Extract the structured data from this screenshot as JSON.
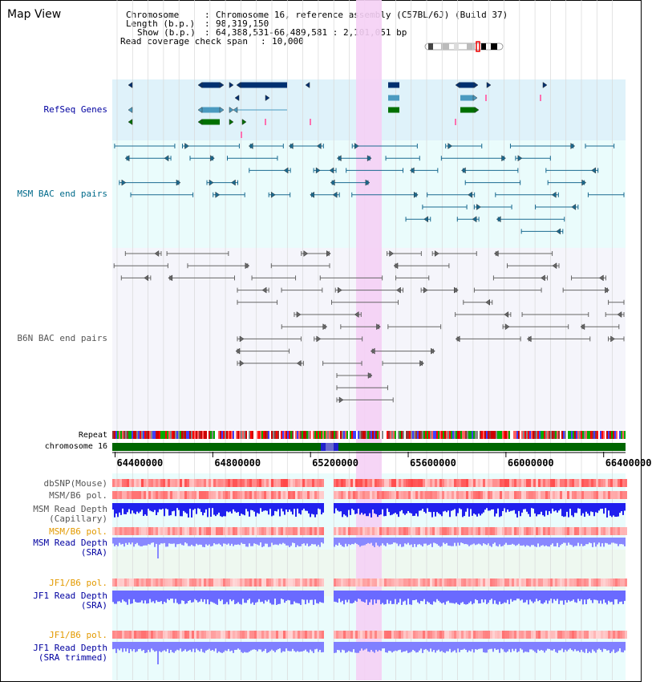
{
  "header": {
    "title": "Map View",
    "chromosome_key": "Chromosome",
    "chromosome_value": "Chromosome 16, reference assembly (C57BL/6J) (Build 37)",
    "length_key": "Length (b.p.)",
    "length_value": "98,319,150",
    "show_key": "Show (b.p.)",
    "show_value": "64,388,531-66,489,581 : 2,101,051 bp",
    "coverage_key": "Read coverage check span",
    "coverage_value": "10,000"
  },
  "axis": {
    "ticks": [
      "64400000",
      "64800000",
      "65200000",
      "65600000",
      "66000000",
      "66400000"
    ],
    "tick_positions_bp": [
      64400000,
      64800000,
      65200000,
      65600000,
      66000000,
      66400000
    ],
    "range_bp": [
      64388531,
      66489581
    ]
  },
  "tracks": {
    "refseq": "RefSeq Genes",
    "msm_bac": "MSM BAC end pairs",
    "b6n_bac": "B6N BAC end pairs",
    "repeat": "Repeat",
    "chromosome": "chromosome 16",
    "dbsnp": "dbSNP(Mouse)",
    "msm_b6_pol_1": "MSM/B6 pol.",
    "msm_depth_cap_1": "MSM Read Depth",
    "msm_depth_cap_2": "(Capillary)",
    "msm_b6_pol_2": "MSM/B6 pol.",
    "msm_depth_sra_1": "MSM Read Depth",
    "msm_depth_sra_2": "(SRA)",
    "jf1_b6_pol_1": "JF1/B6 pol.",
    "jf1_depth_sra_1": "JF1 Read Depth",
    "jf1_depth_sra_2": "(SRA)",
    "jf1_b6_pol_2": "JF1/B6 pol.",
    "jf1_depth_trim_1": "JF1 Read Depth",
    "jf1_depth_trim_2": "(SRA trimmed)"
  },
  "colors": {
    "refseq_bg": "#dff2fa",
    "msm_bg": "#eafcfc",
    "b6n_bg": "#f5f5fb",
    "highlight": "#f5d0f5",
    "gene_navy": "#003070",
    "gene_light": "#4a9ac0",
    "gene_green": "#007000",
    "msm_feature": "#1a6a90",
    "b6n_feature": "#666666",
    "chromosome": "#006600",
    "depth_blue": "#2020ee",
    "depth_light": "#8888ff",
    "pol_red": "#ff2020"
  }
}
